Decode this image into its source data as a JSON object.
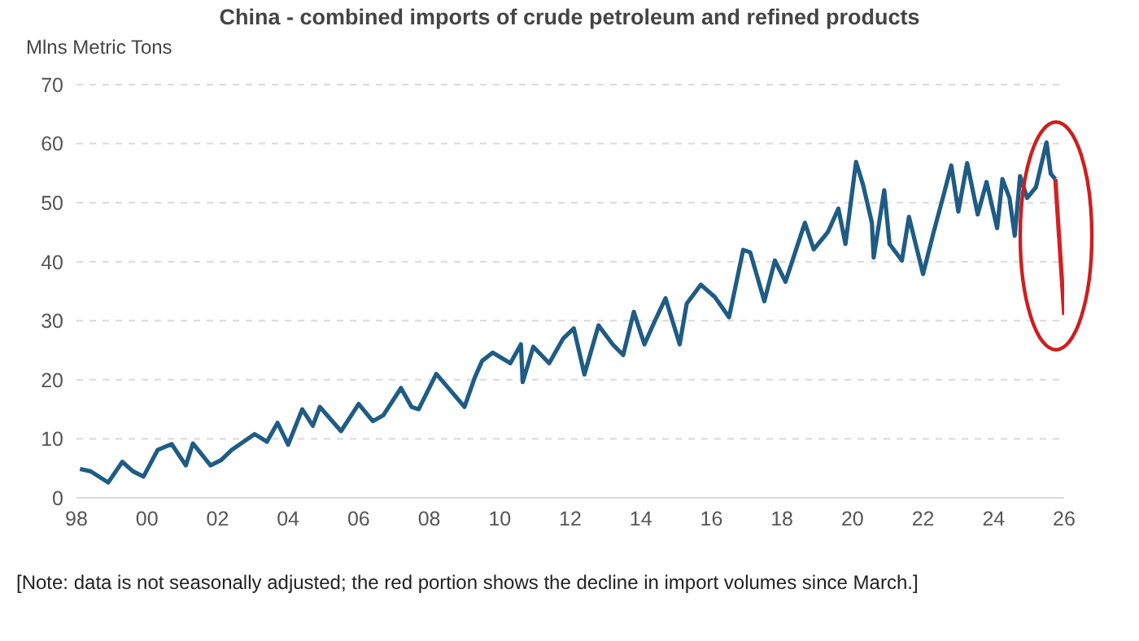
{
  "chart_data": {
    "type": "line",
    "title": "China - combined imports of crude petroleum and refined products",
    "ylabel": "Mlns Metric Tons",
    "annotations": [
      "[Note: data is not seasonally adjusted; the red portion shows the decline in import volumes since March.]"
    ],
    "series": [
      {
        "color": "#1f5c85",
        "x": [
          1998.1,
          1998.4,
          1998.9,
          1999.3,
          1999.6,
          1999.9,
          2000.3,
          2000.7,
          2001.1,
          2001.3,
          2001.8,
          2002.1,
          2002.4,
          2003.05,
          2003.4,
          2003.7,
          2004.0,
          2004.4,
          2004.7,
          2004.9,
          2005.5,
          2006.0,
          2006.4,
          2006.7,
          2007.2,
          2007.5,
          2007.7,
          2008.2,
          2008.6,
          2009.0,
          2009.3,
          2009.5,
          2009.8,
          2010.3,
          2010.6,
          2010.65,
          2010.95,
          2011.4,
          2011.8,
          2012.1,
          2012.4,
          2012.8,
          2013.2,
          2013.5,
          2013.8,
          2014.1,
          2014.4,
          2014.7,
          2015.1,
          2015.3,
          2015.7,
          2016.1,
          2016.5,
          2016.9,
          2017.1,
          2017.5,
          2017.8,
          2018.1,
          2018.65,
          2018.9,
          2019.3,
          2019.6,
          2019.8,
          2020.1,
          2020.3,
          2020.55,
          2020.6,
          2020.9,
          2021.05,
          2021.4,
          2021.6,
          2022.0,
          2022.3,
          2022.6,
          2022.8,
          2023.0,
          2023.25,
          2023.55,
          2023.8,
          2024.1,
          2024.25,
          2024.45,
          2024.6,
          2024.75,
          2024.95,
          2025.2,
          2025.5,
          2025.62,
          2025.75
        ],
        "values": [
          4.9,
          4.5,
          2.6,
          6.1,
          4.5,
          3.6,
          8.1,
          9.1,
          5.5,
          9.2,
          5.5,
          6.4,
          8.1,
          10.8,
          9.5,
          12.7,
          9,
          15,
          12.2,
          15.4,
          11.3,
          15.9,
          13,
          14,
          18.6,
          15.4,
          15,
          21,
          18.2,
          15.4,
          20.5,
          23.2,
          24.6,
          22.8,
          26,
          19.6,
          25.6,
          22.8,
          27,
          28.7,
          20.9,
          29.2,
          26,
          24.2,
          31.5,
          26,
          30,
          33.8,
          26,
          32.9,
          36.1,
          34,
          30.6,
          42,
          41.6,
          33.3,
          40.2,
          36.6,
          46.6,
          42.1,
          45,
          49,
          43,
          56.9,
          53,
          46.6,
          40.7,
          52.1,
          43,
          40.2,
          47.6,
          37.9,
          45,
          51.7,
          56.3,
          48.5,
          56.7,
          48,
          53.5,
          45.7,
          54,
          50.8,
          44.4,
          54.5,
          50.8,
          52.6,
          60.2,
          54.9,
          54
        ]
      },
      {
        "color": "#d42020",
        "x": [
          2025.75,
          2026.0
        ],
        "values": [
          54,
          31
        ]
      }
    ],
    "xlim": [
      1998,
      2026
    ],
    "xticks": [
      {
        "value": 1998,
        "label": "98"
      },
      {
        "value": 2000,
        "label": "00"
      },
      {
        "value": 2002,
        "label": "02"
      },
      {
        "value": 2004,
        "label": "04"
      },
      {
        "value": 2006,
        "label": "06"
      },
      {
        "value": 2008,
        "label": "08"
      },
      {
        "value": 2010,
        "label": "10"
      },
      {
        "value": 2012,
        "label": "12"
      },
      {
        "value": 2014,
        "label": "14"
      },
      {
        "value": 2016,
        "label": "16"
      },
      {
        "value": 2018,
        "label": "18"
      },
      {
        "value": 2020,
        "label": "20"
      },
      {
        "value": 2022,
        "label": "22"
      },
      {
        "value": 2024,
        "label": "24"
      },
      {
        "value": 2026,
        "label": "26"
      }
    ],
    "ylim": [
      0,
      70
    ],
    "yticks": [
      0,
      10,
      20,
      30,
      40,
      50,
      60,
      70
    ],
    "grid": "y",
    "marker": "none",
    "line_style": "solid"
  }
}
